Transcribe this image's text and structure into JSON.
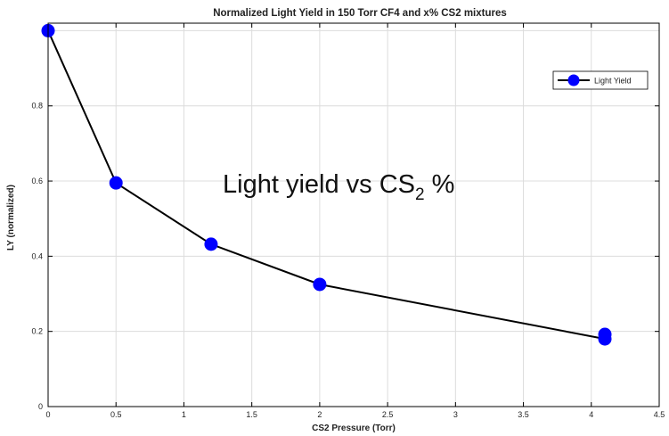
{
  "chart_data": {
    "type": "line",
    "title": "Normalized Light  Yield in 150 Torr CF4 and x% CS2 mixtures",
    "xlabel": "CS2 Pressure (Torr)",
    "ylabel": "LY (normalized)",
    "xlim": [
      0,
      4.5
    ],
    "ylim": [
      0,
      1.02
    ],
    "xticks": [
      0,
      0.5,
      1,
      1.5,
      2,
      2.5,
      3,
      3.5,
      4,
      4.5
    ],
    "xtick_labels": [
      "0",
      "0.5",
      "1",
      "1.5",
      "2",
      "2.5",
      "3",
      "3.5",
      "4",
      "4.5"
    ],
    "yticks": [
      0,
      0.2,
      0.4,
      0.6,
      0.8
    ],
    "ytick_labels": [
      "0",
      "0.2",
      "0.4",
      "0.6",
      "0.8"
    ],
    "grid": true,
    "legend_position": "top-right",
    "series": [
      {
        "name": "Light Yield",
        "color": "#0000ff",
        "line_color": "#000000",
        "x": [
          0,
          0.5,
          1.2,
          2,
          4.1
        ],
        "y": [
          1.0,
          0.595,
          0.432,
          0.325,
          0.18
        ]
      }
    ],
    "extra_points": [
      {
        "x": 4.1,
        "y": 0.192
      }
    ],
    "annotation": {
      "text_main": "Light yield vs CS",
      "text_sub": "2",
      "text_tail": " %"
    }
  }
}
